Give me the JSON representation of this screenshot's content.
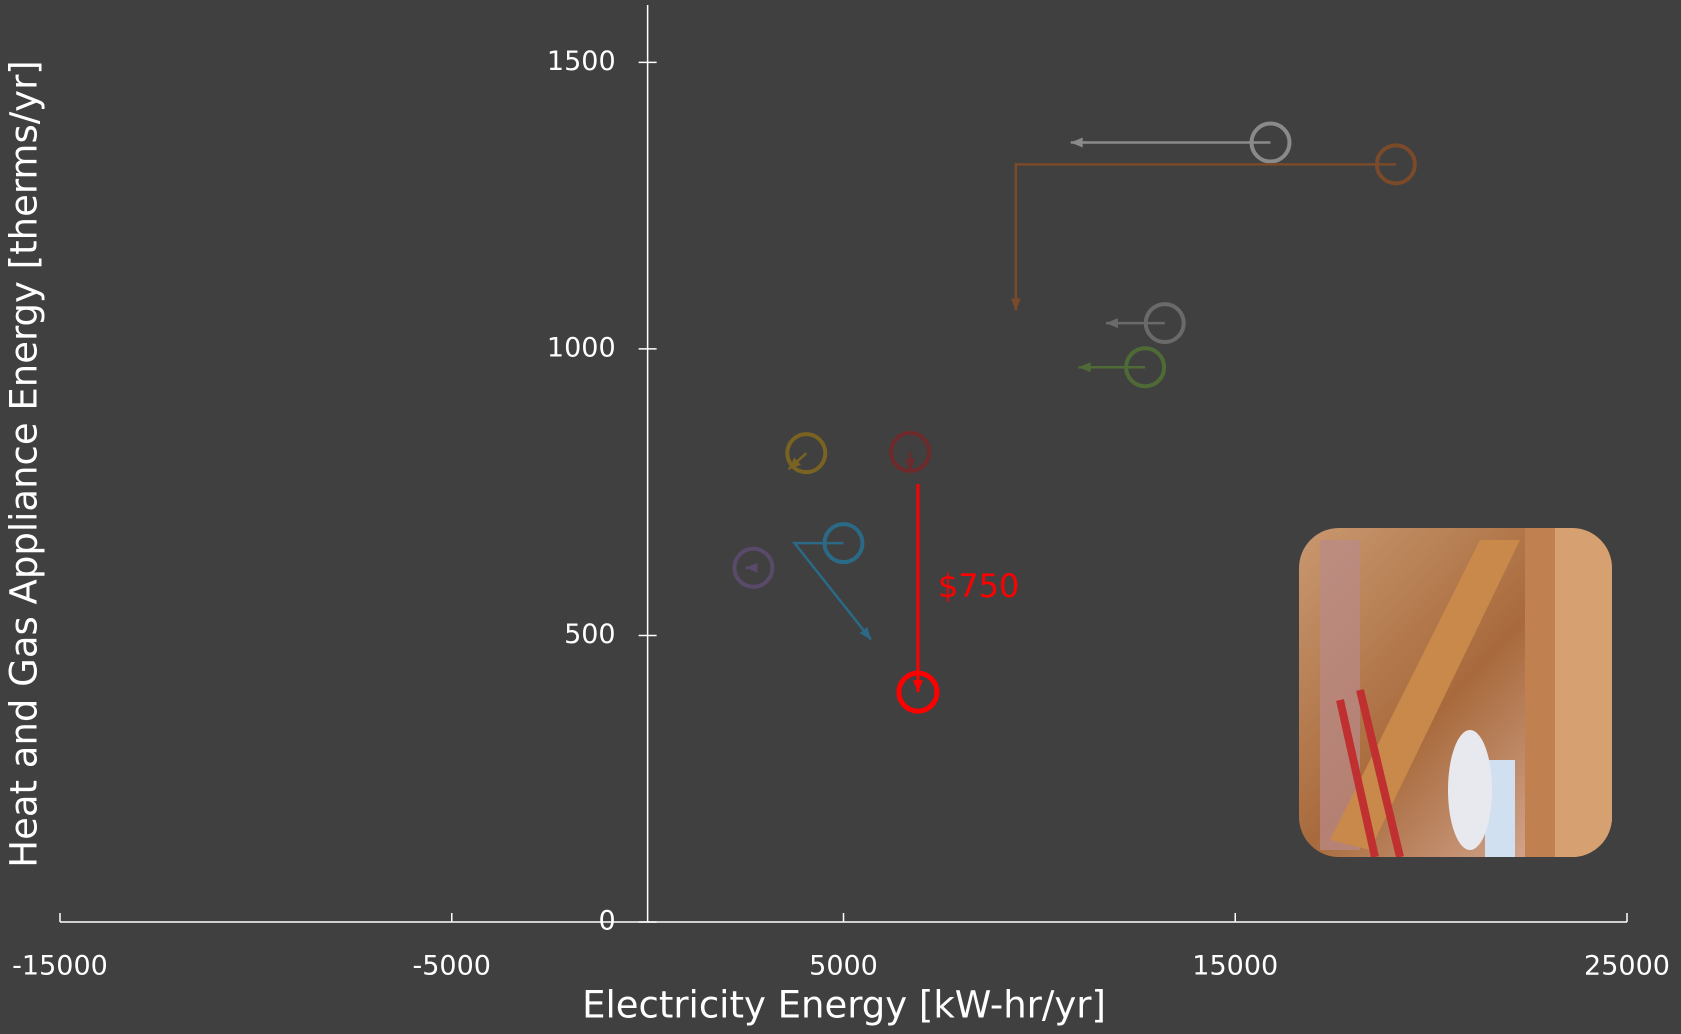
{
  "chart_data": {
    "type": "arrow-scatter",
    "x_label": "Electricity Energy [kW-hr/yr]",
    "y_label": "Heat and Gas Appliance Energy [therms/yr]",
    "xlim": [
      -15000,
      25000
    ],
    "xticks": [
      -15000,
      -5000,
      5000,
      15000,
      25000
    ],
    "ylim": [
      0,
      1600
    ],
    "yticks": [
      0,
      500,
      1000,
      1500
    ],
    "annotation": "$750",
    "annotation_color": "#ff0000",
    "series": [
      {
        "color": "#8a8a8a",
        "marker": "start",
        "x": [
          15900,
          10800
        ],
        "values": [
          1360,
          1360
        ]
      },
      {
        "color": "#7a4a2a",
        "marker": "start",
        "x": [
          19100,
          9400,
          9400
        ],
        "values": [
          1322,
          1322,
          1067
        ]
      },
      {
        "color": "#6a6a6a",
        "marker": "start",
        "x": [
          13200,
          11700
        ],
        "values": [
          1045,
          1045
        ]
      },
      {
        "color": "#4f6b35",
        "marker": "start",
        "x": [
          12700,
          11000
        ],
        "values": [
          968,
          968
        ]
      },
      {
        "color": "#7a6320",
        "marker": "start",
        "x": [
          4050,
          3600
        ],
        "values": [
          818,
          790
        ]
      },
      {
        "color": "#6e2a2a",
        "marker": "start",
        "x": [
          6700,
          6700
        ],
        "values": [
          820,
          787
        ]
      },
      {
        "color": "#5a4a6a",
        "marker": "start",
        "x": [
          2700,
          2500
        ],
        "values": [
          618,
          618
        ]
      },
      {
        "color": "#2a6a86",
        "marker": "start",
        "x": [
          5000,
          3750,
          5700
        ],
        "values": [
          661,
          661,
          493
        ]
      },
      {
        "color": "#ff0000",
        "marker": "end",
        "x": [
          6900,
          6900
        ],
        "values": [
          764,
          401
        ]
      }
    ]
  }
}
